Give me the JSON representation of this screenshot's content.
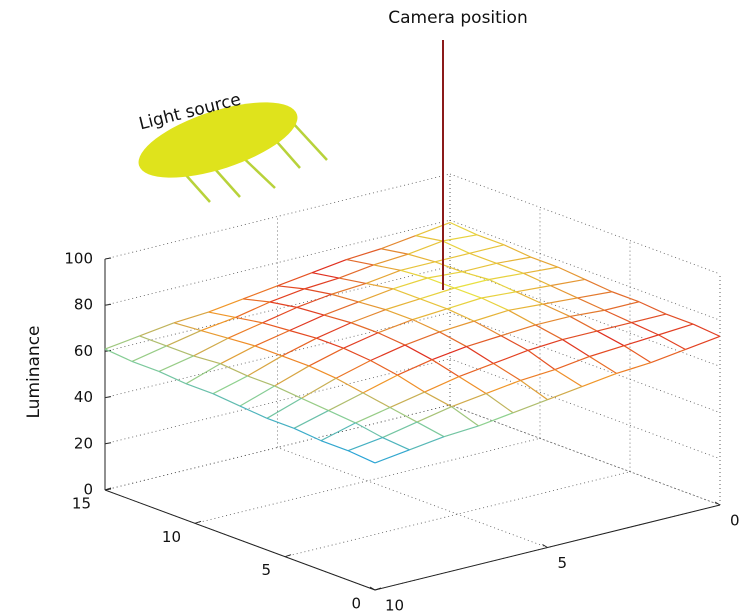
{
  "chart_data": {
    "type": "mesh",
    "zlabel": "Luminance",
    "annotations": [
      "Camera position",
      "Light source"
    ],
    "xlim": [
      0,
      10
    ],
    "xticks": [
      0,
      5,
      10
    ],
    "ylim": [
      0,
      15
    ],
    "yticks": [
      0,
      5,
      10,
      15
    ],
    "zlim": [
      0,
      100
    ],
    "zticks": [
      0,
      20,
      40,
      60,
      80,
      100
    ],
    "grid": true,
    "x": [
      0,
      1,
      2,
      3,
      4,
      5,
      6,
      7,
      8,
      9,
      10
    ],
    "y": [
      0,
      1.5,
      3,
      4.5,
      6,
      7.5,
      9,
      10.5,
      12,
      13.5,
      15
    ],
    "z": [
      [
        73,
        74,
        74,
        75,
        75,
        76,
        77,
        77,
        78,
        78,
        79
      ],
      [
        71,
        73,
        74,
        75,
        76,
        77,
        78,
        78,
        78,
        79,
        77
      ],
      [
        69,
        72,
        74,
        76,
        77,
        78,
        79,
        78,
        78,
        77,
        75
      ],
      [
        68,
        71,
        74,
        76,
        78,
        79,
        79,
        79,
        78,
        76,
        74
      ],
      [
        66,
        69,
        73,
        75,
        77,
        78,
        78,
        78,
        76,
        74,
        72
      ],
      [
        64,
        68,
        71,
        74,
        76,
        77,
        77,
        76,
        75,
        73,
        70
      ],
      [
        62,
        66,
        69,
        72,
        74,
        75,
        75,
        74,
        73,
        71,
        68
      ],
      [
        60,
        64,
        66,
        69,
        71,
        72,
        72,
        71,
        70,
        68,
        66
      ],
      [
        59,
        61,
        63,
        65,
        67,
        68,
        68,
        68,
        67,
        66,
        65
      ],
      [
        57,
        58,
        60,
        61,
        62,
        63,
        63,
        64,
        63,
        63,
        63
      ],
      [
        55,
        56,
        56,
        57,
        57,
        58,
        59,
        59,
        60,
        60,
        61
      ]
    ]
  }
}
